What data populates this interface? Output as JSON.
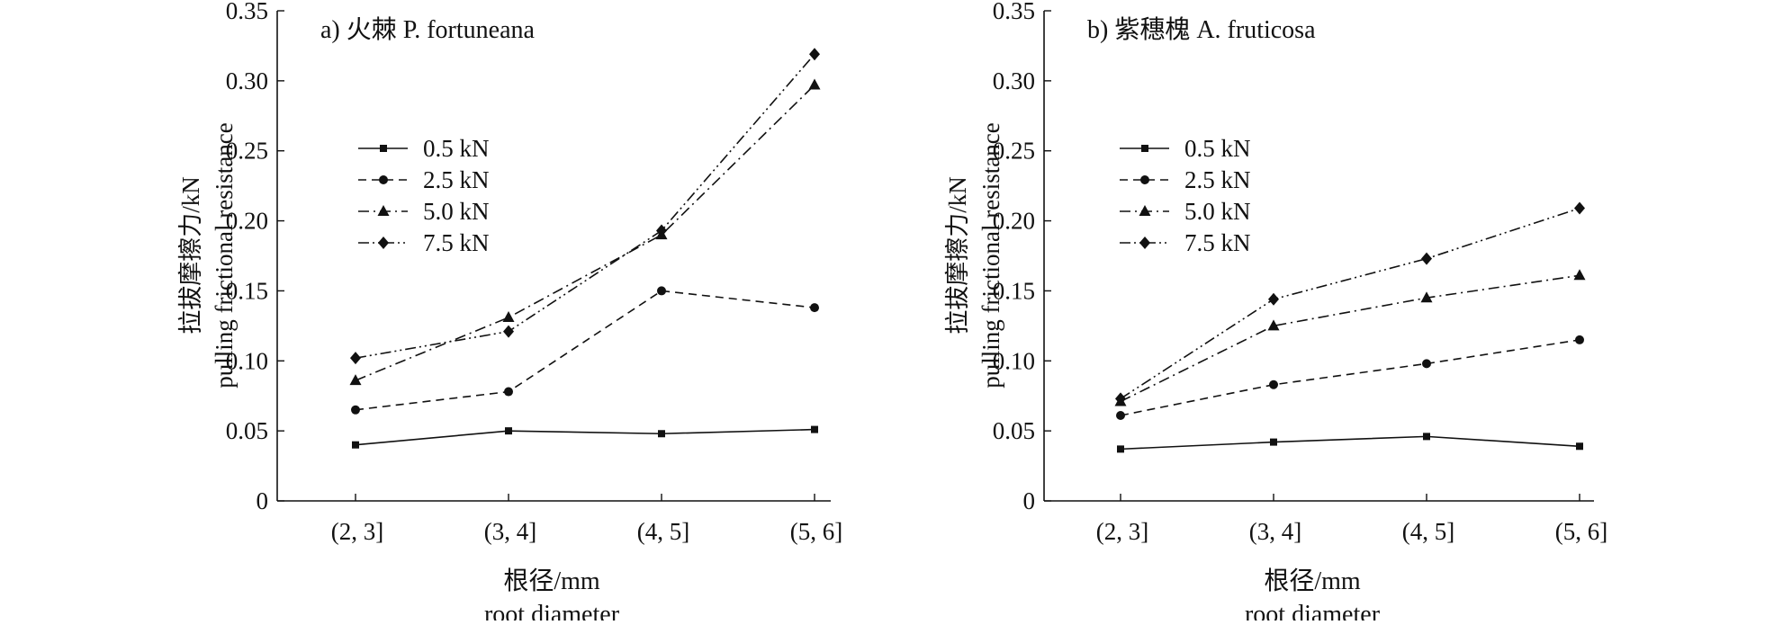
{
  "chart_data": [
    {
      "type": "line",
      "title": "a) 火棘 P. fortuneana",
      "categories": [
        "(2, 3]",
        "(3, 4]",
        "(4, 5]",
        "(5, 6]"
      ],
      "xlabel": "根径/mm",
      "xlabel_en": "root diameter",
      "ylabel": "拉拔摩擦力/kN",
      "ylabel_en": "pulling frictional resistance",
      "ylim": [
        0,
        0.35
      ],
      "yticks": [
        "0",
        "0.05",
        "0.10",
        "0.15",
        "0.20",
        "0.25",
        "0.30",
        "0.35"
      ],
      "legend_position": "left",
      "grid": false,
      "series": [
        {
          "name": "0.5 kN",
          "marker": "square",
          "dash": "solid",
          "values": [
            0.04,
            0.05,
            0.048,
            0.051
          ]
        },
        {
          "name": "2.5 kN",
          "marker": "circle",
          "dash": "dashed",
          "values": [
            0.065,
            0.078,
            0.15,
            0.138
          ]
        },
        {
          "name": "5.0 kN",
          "marker": "triangle",
          "dash": "dashdot",
          "values": [
            0.086,
            0.131,
            0.19,
            0.297
          ]
        },
        {
          "name": "7.5 kN",
          "marker": "diamond",
          "dash": "dashdotdot",
          "values": [
            0.102,
            0.121,
            0.193,
            0.319
          ]
        }
      ]
    },
    {
      "type": "line",
      "title": "b) 紫穗槐 A. fruticosa",
      "categories": [
        "(2, 3]",
        "(3, 4]",
        "(4, 5]",
        "(5, 6]"
      ],
      "xlabel": "根径/mm",
      "xlabel_en": "root diameter",
      "ylabel": "拉拔摩擦力/kN",
      "ylabel_en": "pulling frictional resistance",
      "ylim": [
        0,
        0.35
      ],
      "yticks": [
        "0",
        "0.05",
        "0.10",
        "0.15",
        "0.20",
        "0.25",
        "0.30",
        "0.35"
      ],
      "legend_position": "left",
      "grid": false,
      "series": [
        {
          "name": "0.5 kN",
          "marker": "square",
          "dash": "solid",
          "values": [
            0.037,
            0.042,
            0.046,
            0.039
          ]
        },
        {
          "name": "2.5 kN",
          "marker": "circle",
          "dash": "dashed",
          "values": [
            0.061,
            0.083,
            0.098,
            0.115
          ]
        },
        {
          "name": "5.0 kN",
          "marker": "triangle",
          "dash": "dashdot",
          "values": [
            0.071,
            0.125,
            0.145,
            0.161
          ]
        },
        {
          "name": "7.5 kN",
          "marker": "diamond",
          "dash": "dashdotdot",
          "values": [
            0.073,
            0.144,
            0.173,
            0.209
          ]
        }
      ]
    }
  ]
}
